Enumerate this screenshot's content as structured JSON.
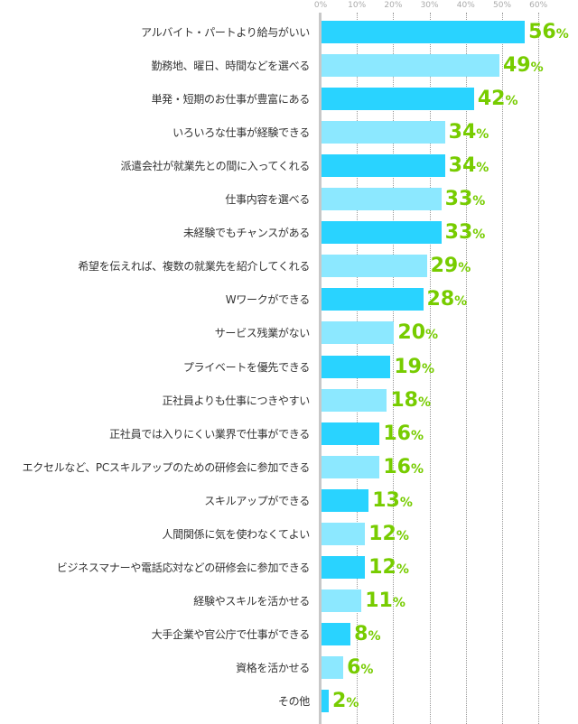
{
  "chart_data": {
    "type": "bar",
    "orientation": "horizontal",
    "xlim": [
      0,
      60
    ],
    "ticks": [
      "0%",
      "10%",
      "20%",
      "30%",
      "40%",
      "50%",
      "60%"
    ],
    "tick_values": [
      0,
      10,
      20,
      30,
      40,
      50,
      60
    ],
    "grid": true,
    "unit": "%",
    "colors": {
      "dark": "#29d3ff",
      "light": "#8ce8ff",
      "value_label": "#77cc00"
    },
    "categories": [
      "アルバイト・パートより給与がいい",
      "勤務地、曜日、時間などを選べる",
      "単発・短期のお仕事が豊富にある",
      "いろいろな仕事が経験できる",
      "派遣会社が就業先との間に入ってくれる",
      "仕事内容を選べる",
      "未経験でもチャンスがある",
      "希望を伝えれば、複数の就業先を紹介してくれる",
      "Wワークができる",
      "サービス残業がない",
      "プライベートを優先できる",
      "正社員よりも仕事につきやすい",
      "正社員では入りにくい業界で仕事ができる",
      "エクセルなど、PCスキルアップのための研修会に参加できる",
      "スキルアップができる",
      "人間関係に気を使わなくてよい",
      "ビジネスマナーや電話応対などの研修会に参加できる",
      "経験やスキルを活かせる",
      "大手企業や官公庁で仕事ができる",
      "資格を活かせる",
      "その他"
    ],
    "values": [
      56,
      49,
      42,
      34,
      34,
      33,
      33,
      29,
      28,
      20,
      19,
      18,
      16,
      16,
      13,
      12,
      12,
      11,
      8,
      6,
      2
    ]
  }
}
